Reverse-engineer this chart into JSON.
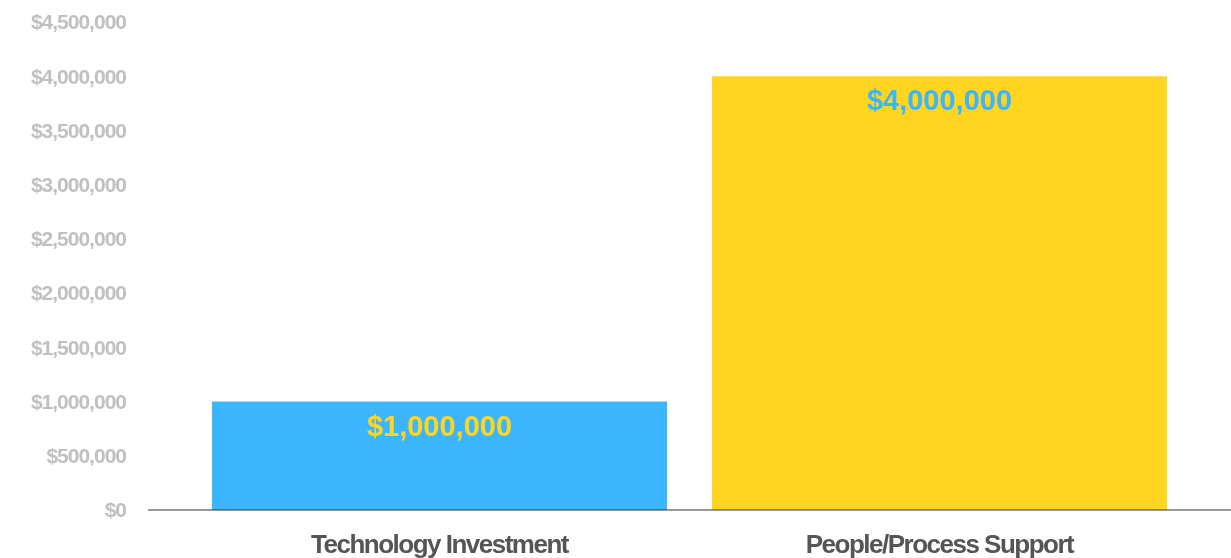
{
  "chart_data": {
    "type": "bar",
    "categories": [
      "Technology Investment",
      "People/Process Support"
    ],
    "values": [
      1000000,
      4000000
    ],
    "colors": [
      "#3bb6fe",
      "#ffd51f"
    ],
    "ylim": [
      0,
      4500000
    ],
    "yticks": [
      {
        "value": 0,
        "label": "$0"
      },
      {
        "value": 500000,
        "label": "$500,000"
      },
      {
        "value": 1000000,
        "label": "$1,000,000"
      },
      {
        "value": 1500000,
        "label": "$1,500,000"
      },
      {
        "value": 2000000,
        "label": "$2,000,000"
      },
      {
        "value": 2500000,
        "label": "$2,500,000"
      },
      {
        "value": 3000000,
        "label": "$3,000,000"
      },
      {
        "value": 3500000,
        "label": "$3,500,000"
      },
      {
        "value": 4000000,
        "label": "$4,000,000"
      },
      {
        "value": 4500000,
        "label": "$4,500,000"
      }
    ],
    "value_labels": [
      "$1,000,000",
      "$4,000,000"
    ],
    "grid": false
  }
}
